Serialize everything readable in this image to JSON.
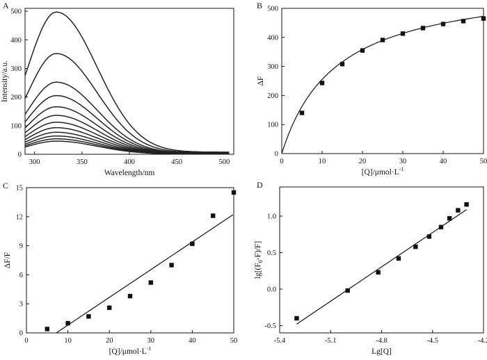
{
  "chart_data": [
    {
      "panel": "A",
      "type": "line",
      "xlabel": "Wavelength/nm",
      "ylabel": "Intensity/a.u.",
      "xlim": [
        290,
        510
      ],
      "ylim": [
        0,
        510
      ],
      "xticks": [
        "300",
        "350",
        "400",
        "450",
        "500"
      ],
      "yticks": [
        "0",
        "100",
        "200",
        "300",
        "400",
        "500"
      ],
      "peak_wavelength": 323,
      "start_wavelength": 290,
      "end_wavelength": 505,
      "series": [
        {
          "peak": 497
        },
        {
          "peak": 352
        },
        {
          "peak": 252
        },
        {
          "peak": 205
        },
        {
          "peak": 166
        },
        {
          "peak": 136
        },
        {
          "peak": 112
        },
        {
          "peak": 93
        },
        {
          "peak": 77
        },
        {
          "peak": 64
        },
        {
          "peak": 54
        },
        {
          "peak": 46
        }
      ]
    },
    {
      "panel": "B",
      "type": "scatter",
      "xlabel": "[Q]/μmol·L",
      "xlabel_sup": "-1",
      "ylabel": "ΔF",
      "xlim": [
        0,
        50
      ],
      "ylim": [
        0,
        500
      ],
      "xticks": [
        "0",
        "10",
        "20",
        "30",
        "40",
        "50"
      ],
      "yticks": [
        "0",
        "100",
        "200",
        "300",
        "400",
        "500"
      ],
      "x": [
        5,
        10,
        15,
        20,
        25,
        30,
        35,
        40,
        45,
        50
      ],
      "y": [
        140,
        243,
        308,
        355,
        391,
        413,
        432,
        446,
        456,
        465
      ],
      "fit": {
        "form": "hyperbolic",
        "fmax": 600,
        "k": 13.5
      }
    },
    {
      "panel": "C",
      "type": "scatter",
      "xlabel": "[Q]/μmol·L",
      "xlabel_sup": "-1",
      "ylabel": "ΔF/F",
      "xlim": [
        0,
        50
      ],
      "ylim": [
        0,
        15
      ],
      "xticks": [
        "0",
        "10",
        "20",
        "30",
        "40",
        "50"
      ],
      "yticks": [
        "0",
        "3",
        "6",
        "9",
        "12",
        "15"
      ],
      "x": [
        5,
        10,
        15,
        20,
        25,
        30,
        35,
        40,
        45,
        50
      ],
      "y": [
        0.4,
        1.0,
        1.7,
        2.6,
        3.8,
        5.2,
        7.0,
        9.2,
        12.1,
        14.5
      ],
      "fit": {
        "x": [
          7.2,
          49.8
        ],
        "y": [
          0,
          12.2
        ]
      }
    },
    {
      "panel": "D",
      "type": "scatter",
      "xlabel": "Lg[Q]",
      "ylabel": "lg[(F",
      "ylabel_sub": "0",
      "ylabel_rest": "-F)/F]",
      "xlim": [
        -5.4,
        -4.2
      ],
      "ylim": [
        -0.6,
        1.4
      ],
      "xticks": [
        "-5.4",
        "-5.1",
        "-4.8",
        "-4.5",
        "-4.2"
      ],
      "yticks": [
        "-0.5",
        "0.0",
        "0.5",
        "1.0"
      ],
      "x": [
        -5.3,
        -5.0,
        -4.82,
        -4.7,
        -4.6,
        -4.52,
        -4.45,
        -4.4,
        -4.35,
        -4.3
      ],
      "y": [
        -0.4,
        -0.02,
        0.23,
        0.42,
        0.58,
        0.72,
        0.85,
        0.97,
        1.08,
        1.16
      ],
      "fit": {
        "x": [
          -5.3,
          -4.3
        ],
        "y": [
          -0.48,
          1.09
        ]
      }
    }
  ]
}
